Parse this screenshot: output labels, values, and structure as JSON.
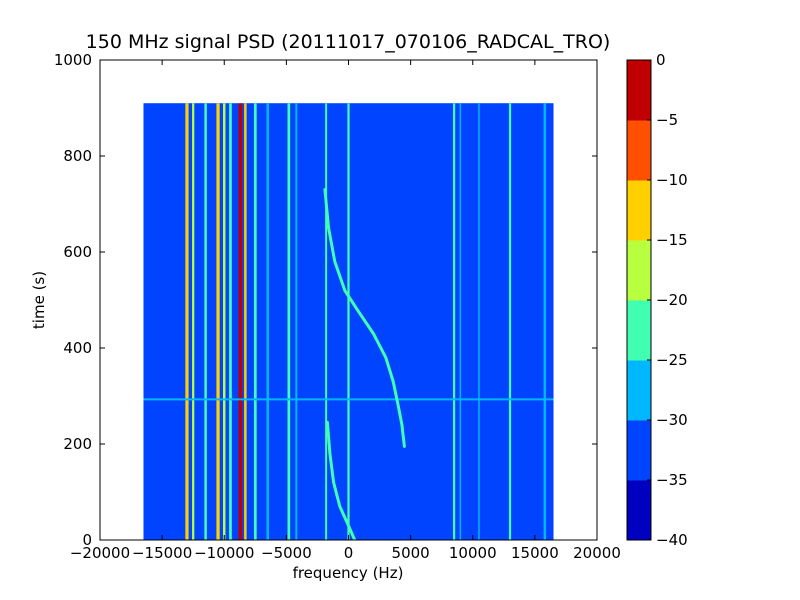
{
  "chart_data": {
    "type": "heatmap",
    "title": "150 MHz signal PSD (20111017_070106_RADCAL_TRO)",
    "xlabel": "frequency (Hz)",
    "ylabel": "time (s)",
    "xlim": [
      -20000,
      20000
    ],
    "ylim": [
      0,
      1000
    ],
    "xticks": [
      -20000,
      -15000,
      -10000,
      -5000,
      0,
      5000,
      10000,
      15000,
      20000
    ],
    "xtick_labels": [
      "−20000",
      "−15000",
      "−10000",
      "−5000",
      "0",
      "5000",
      "10000",
      "15000",
      "20000"
    ],
    "yticks": [
      0,
      200,
      400,
      600,
      800,
      1000
    ],
    "ytick_labels": [
      "0",
      "200",
      "400",
      "600",
      "800",
      "1000"
    ],
    "data_extent": {
      "x": [
        -16500,
        16500
      ],
      "y": [
        0,
        910
      ]
    },
    "background_level": -33,
    "colorbar": {
      "range": [
        -40,
        0
      ],
      "levels": [
        -40,
        -35,
        -30,
        -25,
        -20,
        -15,
        -10,
        -5,
        0
      ],
      "tick_labels": [
        "0",
        "−5",
        "−10",
        "−15",
        "−20",
        "−25",
        "−30",
        "−35",
        "−40"
      ],
      "colors": [
        "#0000c0",
        "#0044ff",
        "#00b8ff",
        "#40ffb0",
        "#b8ff40",
        "#ffd000",
        "#ff5000",
        "#c00000"
      ]
    },
    "vertical_lines": [
      {
        "freq": -13000,
        "level": -12,
        "width": 260
      },
      {
        "freq": -12500,
        "level": -20,
        "width": 180
      },
      {
        "freq": -11500,
        "level": -22,
        "width": 200
      },
      {
        "freq": -10500,
        "level": -12,
        "width": 260
      },
      {
        "freq": -10000,
        "level": -20,
        "width": 200
      },
      {
        "freq": -9500,
        "level": -24,
        "width": 220
      },
      {
        "freq": -8700,
        "level": -3,
        "width": 300
      },
      {
        "freq": -8300,
        "level": -12,
        "width": 200
      },
      {
        "freq": -7500,
        "level": -24,
        "width": 220
      },
      {
        "freq": -6500,
        "level": -26,
        "width": 200
      },
      {
        "freq": -4800,
        "level": -22,
        "width": 220
      },
      {
        "freq": -4200,
        "level": -27,
        "width": 160
      },
      {
        "freq": -1800,
        "level": -24,
        "width": 160
      },
      {
        "freq": 0,
        "level": -24,
        "width": 180
      },
      {
        "freq": 8500,
        "level": -25,
        "width": 180
      },
      {
        "freq": 9000,
        "level": -27,
        "width": 120
      },
      {
        "freq": 10500,
        "level": -27,
        "width": 120
      },
      {
        "freq": 13000,
        "level": -25,
        "width": 180
      },
      {
        "freq": 15800,
        "level": -27,
        "width": 200
      }
    ],
    "horizontal_line": {
      "time": 293,
      "level": -27
    },
    "drifting_signal": {
      "level": -22,
      "points": [
        {
          "t": 730,
          "f": -1900
        },
        {
          "t": 650,
          "f": -1600
        },
        {
          "t": 580,
          "f": -1100
        },
        {
          "t": 520,
          "f": -300
        },
        {
          "t": 480,
          "f": 700
        },
        {
          "t": 430,
          "f": 2000
        },
        {
          "t": 380,
          "f": 3000
        },
        {
          "t": 330,
          "f": 3600
        },
        {
          "t": 280,
          "f": 4000
        },
        {
          "t": 240,
          "f": 4300
        },
        {
          "t": 195,
          "f": 4500
        }
      ]
    },
    "drifting_signal_lower": {
      "level": -22,
      "points": [
        {
          "t": 245,
          "f": -1700
        },
        {
          "t": 180,
          "f": -1500
        },
        {
          "t": 120,
          "f": -1200
        },
        {
          "t": 70,
          "f": -700
        },
        {
          "t": 30,
          "f": 0
        },
        {
          "t": 0,
          "f": 500
        }
      ]
    }
  }
}
